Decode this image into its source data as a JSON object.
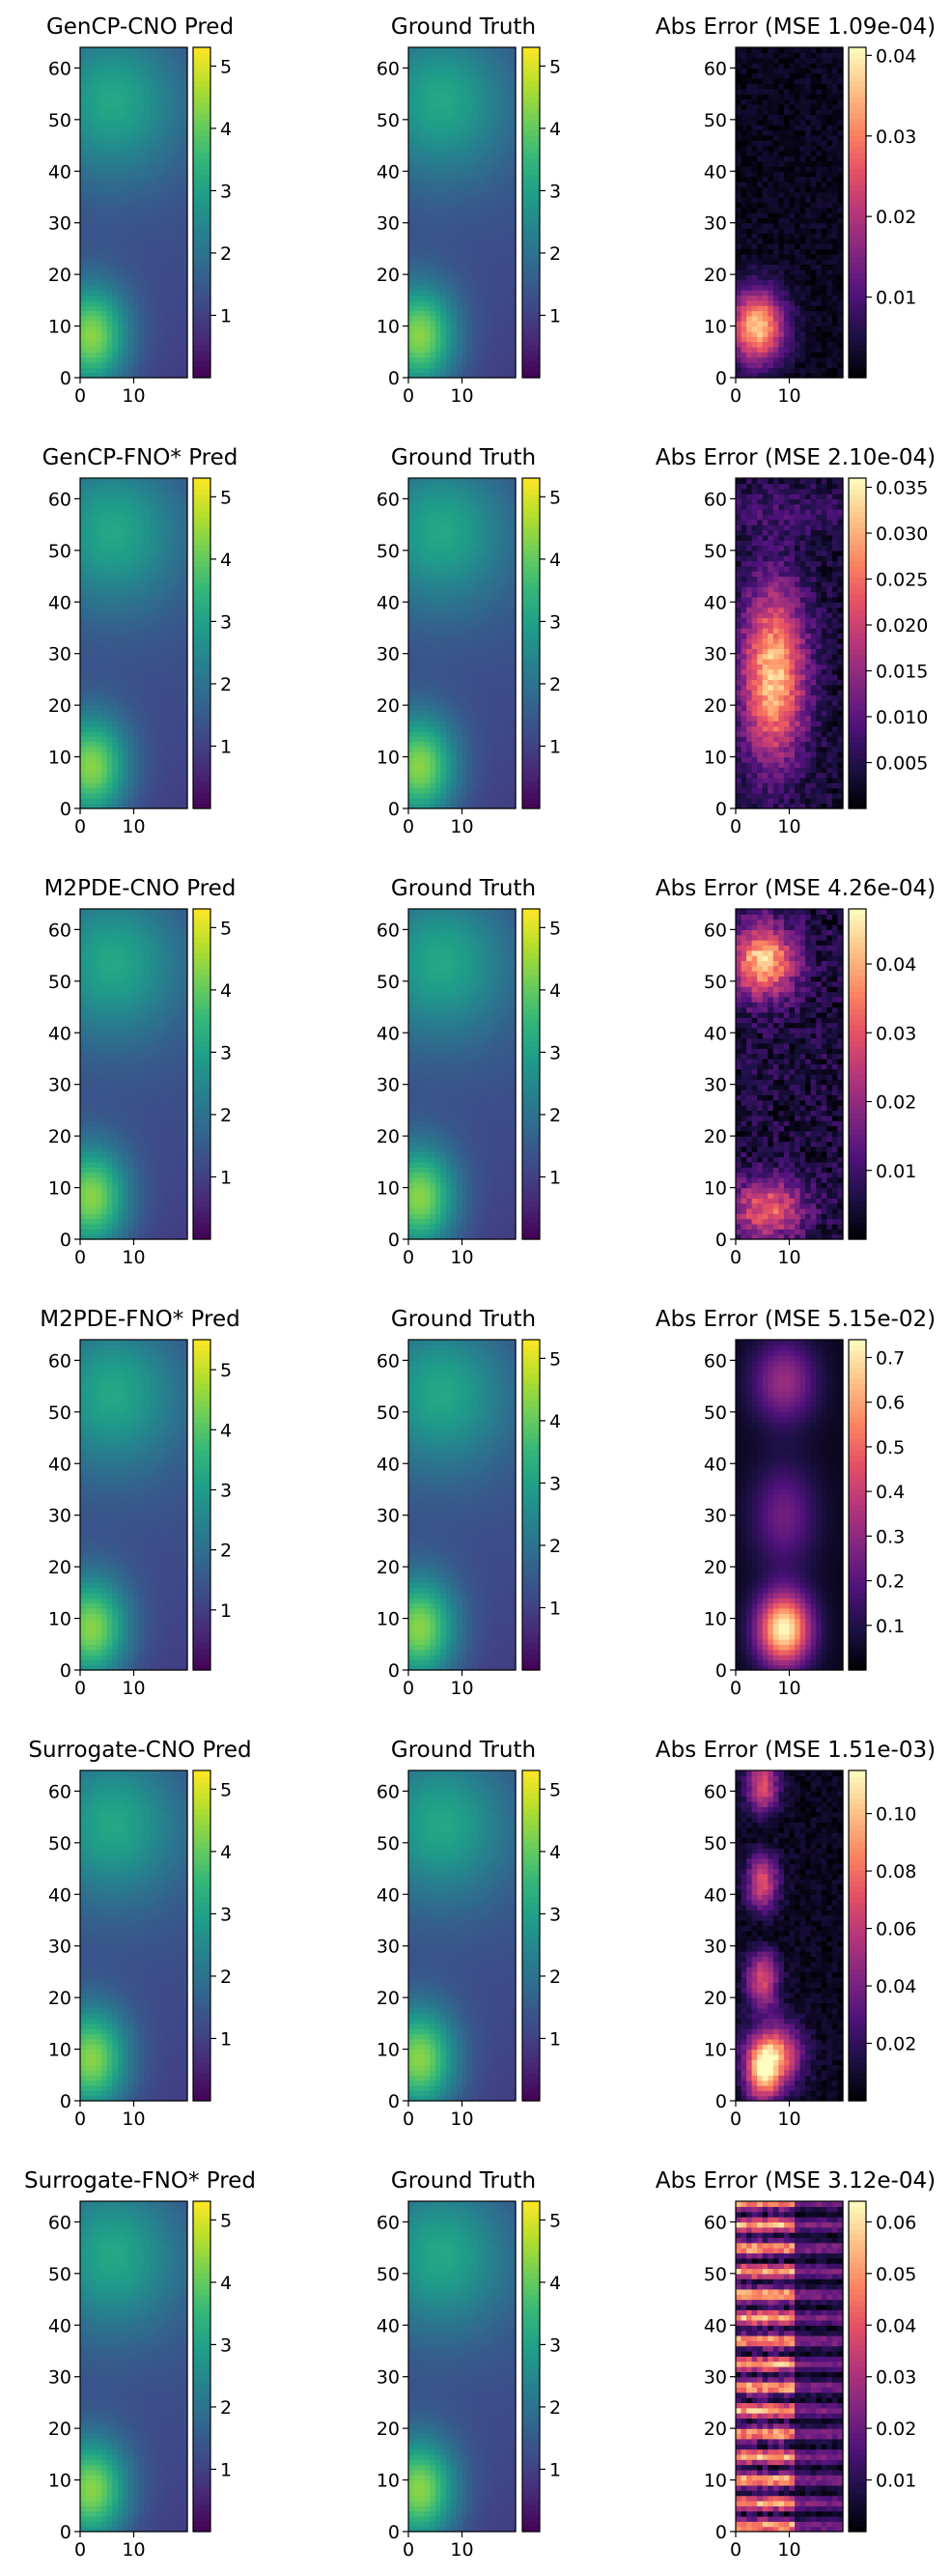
{
  "chart_data": [
    {
      "type": "heatmap",
      "rows": [
        {
          "panels": [
            {
              "kind": "pred",
              "title": "GenCP-CNO Pred",
              "colormap": "viridis",
              "cbar_ticks": [
                "1",
                "2",
                "3",
                "4",
                "5"
              ],
              "cbar_range": [
                0,
                5.3
              ]
            },
            {
              "kind": "truth",
              "title": "Ground Truth",
              "colormap": "viridis",
              "cbar_ticks": [
                "1",
                "2",
                "3",
                "4",
                "5"
              ],
              "cbar_range": [
                0,
                5.3
              ]
            },
            {
              "kind": "error",
              "title": "Abs Error (MSE 1.09e-04)",
              "colormap": "magma",
              "pattern": "lower-hotspot",
              "cbar_ticks": [
                "0.01",
                "0.02",
                "0.03",
                "0.04"
              ],
              "cbar_range": [
                0,
                0.041
              ]
            }
          ]
        },
        {
          "panels": [
            {
              "kind": "pred",
              "title": "GenCP-FNO* Pred",
              "colormap": "viridis",
              "cbar_ticks": [
                "1",
                "2",
                "3",
                "4",
                "5"
              ],
              "cbar_range": [
                0,
                5.3
              ]
            },
            {
              "kind": "truth",
              "title": "Ground Truth",
              "colormap": "viridis",
              "cbar_ticks": [
                "1",
                "2",
                "3",
                "4",
                "5"
              ],
              "cbar_range": [
                0,
                5.3
              ]
            },
            {
              "kind": "error",
              "title": "Abs Error (MSE 2.10e-04)",
              "colormap": "magma",
              "pattern": "central-band",
              "cbar_ticks": [
                "0.005",
                "0.010",
                "0.015",
                "0.020",
                "0.025",
                "0.030",
                "0.035"
              ],
              "cbar_range": [
                0,
                0.036
              ]
            }
          ]
        },
        {
          "panels": [
            {
              "kind": "pred",
              "title": "M2PDE-CNO Pred",
              "colormap": "viridis",
              "cbar_ticks": [
                "1",
                "2",
                "3",
                "4",
                "5"
              ],
              "cbar_range": [
                0,
                5.3
              ]
            },
            {
              "kind": "truth",
              "title": "Ground Truth",
              "colormap": "viridis",
              "cbar_ticks": [
                "1",
                "2",
                "3",
                "4",
                "5"
              ],
              "cbar_range": [
                0,
                5.3
              ]
            },
            {
              "kind": "error",
              "title": "Abs Error (MSE 4.26e-04)",
              "colormap": "magma",
              "pattern": "top-and-bottom",
              "cbar_ticks": [
                "0.01",
                "0.02",
                "0.03",
                "0.04"
              ],
              "cbar_range": [
                0,
                0.048
              ]
            }
          ]
        },
        {
          "panels": [
            {
              "kind": "pred",
              "title": "M2PDE-FNO* Pred",
              "colormap": "viridis",
              "cbar_ticks": [
                "1",
                "2",
                "3",
                "4",
                "5"
              ],
              "cbar_range": [
                0,
                5.5
              ]
            },
            {
              "kind": "truth",
              "title": "Ground Truth",
              "colormap": "viridis",
              "cbar_ticks": [
                "1",
                "2",
                "3",
                "4",
                "5"
              ],
              "cbar_range": [
                0,
                5.3
              ]
            },
            {
              "kind": "error",
              "title": "Abs Error (MSE 5.15e-02)",
              "colormap": "magma",
              "pattern": "smooth-blobs",
              "cbar_ticks": [
                "0.1",
                "0.2",
                "0.3",
                "0.4",
                "0.5",
                "0.6",
                "0.7"
              ],
              "cbar_range": [
                0,
                0.74
              ]
            }
          ]
        },
        {
          "panels": [
            {
              "kind": "pred",
              "title": "Surrogate-CNO Pred",
              "colormap": "viridis",
              "cbar_ticks": [
                "1",
                "2",
                "3",
                "4",
                "5"
              ],
              "cbar_range": [
                0,
                5.3
              ]
            },
            {
              "kind": "truth",
              "title": "Ground Truth",
              "colormap": "viridis",
              "cbar_ticks": [
                "1",
                "2",
                "3",
                "4",
                "5"
              ],
              "cbar_range": [
                0,
                5.3
              ]
            },
            {
              "kind": "error",
              "title": "Abs Error (MSE 1.51e-03)",
              "colormap": "magma",
              "pattern": "streaks",
              "cbar_ticks": [
                "0.02",
                "0.04",
                "0.06",
                "0.08",
                "0.10"
              ],
              "cbar_range": [
                0,
                0.115
              ]
            }
          ]
        },
        {
          "panels": [
            {
              "kind": "pred",
              "title": "Surrogate-FNO* Pred",
              "colormap": "viridis",
              "cbar_ticks": [
                "1",
                "2",
                "3",
                "4",
                "5"
              ],
              "cbar_range": [
                0,
                5.3
              ]
            },
            {
              "kind": "truth",
              "title": "Ground Truth",
              "colormap": "viridis",
              "cbar_ticks": [
                "1",
                "2",
                "3",
                "4",
                "5"
              ],
              "cbar_range": [
                0,
                5.3
              ]
            },
            {
              "kind": "error",
              "title": "Abs Error (MSE 3.12e-04)",
              "colormap": "magma",
              "pattern": "stripes",
              "cbar_ticks": [
                "0.01",
                "0.02",
                "0.03",
                "0.04",
                "0.05",
                "0.06"
              ],
              "cbar_range": [
                0,
                0.064
              ]
            }
          ]
        }
      ],
      "y_ticks": [
        "0",
        "10",
        "20",
        "30",
        "40",
        "50",
        "60"
      ],
      "x_ticks": [
        "0",
        "10"
      ],
      "y_range": [
        0,
        64
      ],
      "x_range": [
        0,
        20
      ]
    }
  ]
}
